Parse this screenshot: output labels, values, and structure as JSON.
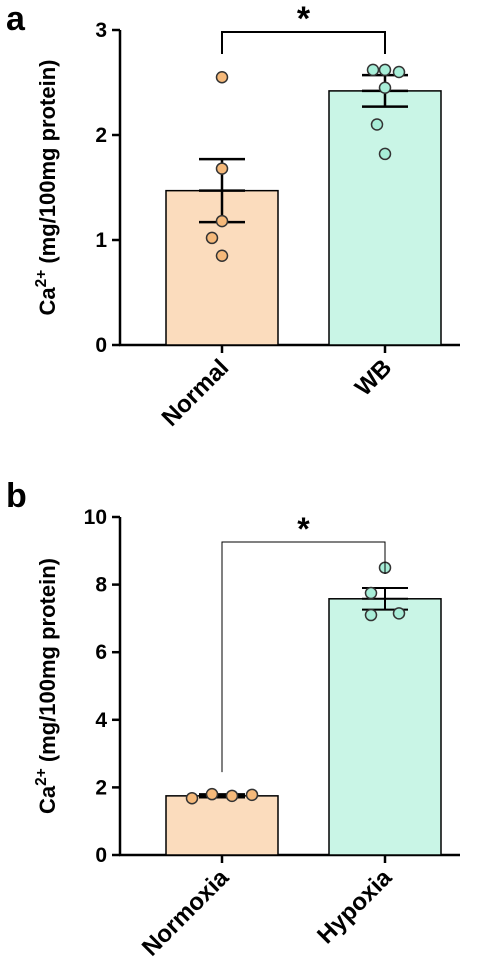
{
  "panels": [
    {
      "label": "a"
    },
    {
      "label": "b"
    }
  ],
  "chart_data": [
    {
      "type": "bar",
      "panel": "a",
      "categories": [
        "Normal",
        "WB"
      ],
      "ylabel_main": "Ca",
      "ylabel_sup": "2+",
      "ylabel_rest": " (mg/100mg protein)",
      "ylim": [
        0,
        3
      ],
      "yticks": [
        0,
        1,
        2,
        3
      ],
      "bar_colors": [
        "#fbdcbd",
        "#c9f5e6"
      ],
      "dot_colors": [
        "#f5b97a",
        "#a8eed8"
      ],
      "series": [
        {
          "values": [
            1.47,
            2.42
          ],
          "sem": [
            0.3,
            0.15
          ]
        }
      ],
      "points": [
        [
          2.55,
          1.68,
          1.18,
          1.02,
          0.85
        ],
        [
          2.62,
          2.62,
          2.6,
          2.45,
          2.1,
          1.82
        ]
      ],
      "significance": {
        "pair": [
          0,
          1
        ],
        "text": "*"
      }
    },
    {
      "type": "bar",
      "panel": "b",
      "categories": [
        "Normoxia",
        "Hypoxia"
      ],
      "ylabel_main": "Ca",
      "ylabel_sup": "2+",
      "ylabel_rest": " (mg/100mg protein)",
      "ylim": [
        0,
        10
      ],
      "yticks": [
        0,
        2,
        4,
        6,
        8,
        10
      ],
      "bar_colors": [
        "#fbdcbd",
        "#c9f5e6"
      ],
      "dot_colors": [
        "#f5b97a",
        "#a8eed8"
      ],
      "series": [
        {
          "values": [
            1.75,
            7.58
          ],
          "sem": [
            0.05,
            0.32
          ]
        }
      ],
      "points": [
        [
          1.68,
          1.8,
          1.75,
          1.78
        ],
        [
          8.5,
          7.75,
          7.1,
          7.15
        ]
      ],
      "significance": {
        "pair": [
          0,
          1
        ],
        "text": "*"
      }
    }
  ]
}
